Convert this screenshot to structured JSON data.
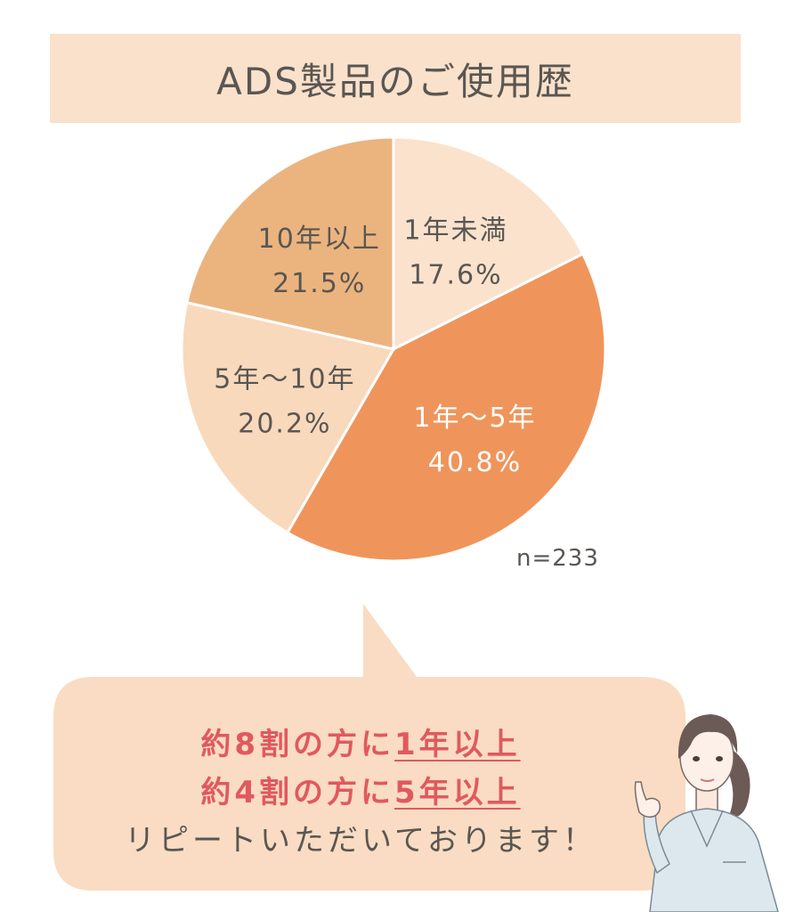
{
  "title": "ADS製品のご使用歴",
  "chart_data": {
    "type": "pie",
    "title": "ADS製品のご使用歴",
    "slices": [
      {
        "label": "1年未満",
        "value": 17.6,
        "value_label": "17.6%",
        "color": "#fbe2cd"
      },
      {
        "label": "1年～5年",
        "value": 40.8,
        "value_label": "40.8%",
        "color": "#ef955c"
      },
      {
        "label": "5年～10年",
        "value": 20.2,
        "value_label": "20.2%",
        "color": "#f8d9bc"
      },
      {
        "label": "10年以上",
        "value": 21.5,
        "value_label": "21.5%",
        "color": "#ebb47f"
      }
    ],
    "start": "12 o'clock, clockwise",
    "note": "n=233"
  },
  "summary": {
    "line1_prefix": "約8割の方に",
    "line1_emph": "1年以上",
    "line2_prefix": "約4割の方に",
    "line2_emph": "5年以上",
    "line3": "リピートいただいております！"
  },
  "colors": {
    "accent": "#e0595e",
    "text": "#5a5652",
    "band": "#f9e1cb",
    "bubble": "#f9dcc3"
  }
}
